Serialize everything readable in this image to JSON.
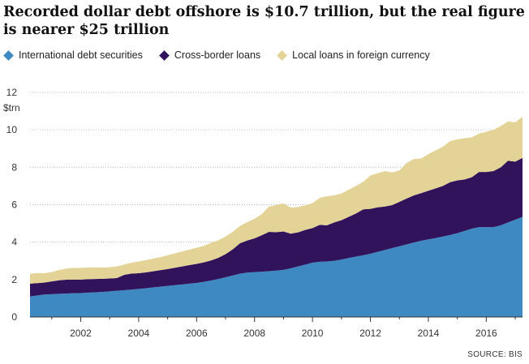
{
  "title": "Recorded dollar debt offshore is $10.7 trillion, but the real figure is nearer $25 trillion",
  "source": "SOURCE: BIS",
  "colors": {
    "international_debt_securities": "#3f89c3",
    "cross_border_loans": "#30135a",
    "local_loans_foreign_currency": "#e4d397",
    "grid": "#bdbdbd"
  },
  "chart_data": {
    "type": "area",
    "stacked": true,
    "title": "Recorded dollar debt offshore is $10.7 trillion, but the real figure is nearer $25 trillion",
    "ylabel": "$trn",
    "xlabel": "",
    "xlim": [
      2000.25,
      2017.25
    ],
    "ylim": [
      0,
      12
    ],
    "yticks": [
      "0",
      "2",
      "4",
      "6",
      "8",
      "10",
      "12"
    ],
    "xticks": [
      "2002",
      "2004",
      "2006",
      "2008",
      "2010",
      "2012",
      "2014",
      "2016"
    ],
    "grid": true,
    "legend_position": "top-left",
    "legend": [
      "International debt securities",
      "Cross-border loans",
      "Local loans in foreign currency"
    ],
    "x": [
      2000.25,
      2000.5,
      2000.75,
      2001.0,
      2001.25,
      2001.5,
      2001.75,
      2002.0,
      2002.25,
      2002.5,
      2002.75,
      2003.0,
      2003.25,
      2003.5,
      2003.75,
      2004.0,
      2004.25,
      2004.5,
      2004.75,
      2005.0,
      2005.25,
      2005.5,
      2005.75,
      2006.0,
      2006.25,
      2006.5,
      2006.75,
      2007.0,
      2007.25,
      2007.5,
      2007.75,
      2008.0,
      2008.25,
      2008.5,
      2008.75,
      2009.0,
      2009.25,
      2009.5,
      2009.75,
      2010.0,
      2010.25,
      2010.5,
      2010.75,
      2011.0,
      2011.25,
      2011.5,
      2011.75,
      2012.0,
      2012.25,
      2012.5,
      2012.75,
      2013.0,
      2013.25,
      2013.5,
      2013.75,
      2014.0,
      2014.25,
      2014.5,
      2014.75,
      2015.0,
      2015.25,
      2015.5,
      2015.75,
      2016.0,
      2016.25,
      2016.5,
      2016.75,
      2017.0,
      2017.25
    ],
    "series": [
      {
        "name": "International debt securities",
        "values": [
          1.1,
          1.15,
          1.2,
          1.22,
          1.24,
          1.25,
          1.27,
          1.28,
          1.3,
          1.32,
          1.34,
          1.37,
          1.4,
          1.43,
          1.46,
          1.5,
          1.54,
          1.58,
          1.62,
          1.66,
          1.7,
          1.74,
          1.78,
          1.82,
          1.88,
          1.95,
          2.03,
          2.12,
          2.22,
          2.32,
          2.37,
          2.4,
          2.42,
          2.45,
          2.48,
          2.52,
          2.6,
          2.7,
          2.8,
          2.9,
          2.95,
          2.97,
          3.0,
          3.07,
          3.15,
          3.23,
          3.3,
          3.38,
          3.48,
          3.58,
          3.68,
          3.78,
          3.88,
          3.98,
          4.07,
          4.15,
          4.22,
          4.3,
          4.38,
          4.48,
          4.6,
          4.72,
          4.8,
          4.8,
          4.8,
          4.9,
          5.05,
          5.2,
          5.35
        ]
      },
      {
        "name": "Cross-border loans",
        "values": [
          0.68,
          0.66,
          0.64,
          0.68,
          0.72,
          0.74,
          0.73,
          0.72,
          0.72,
          0.71,
          0.7,
          0.69,
          0.68,
          0.82,
          0.86,
          0.84,
          0.84,
          0.86,
          0.88,
          0.9,
          0.93,
          0.96,
          0.99,
          1.02,
          1.04,
          1.07,
          1.13,
          1.24,
          1.4,
          1.62,
          1.72,
          1.8,
          1.95,
          2.1,
          2.05,
          2.05,
          1.85,
          1.82,
          1.85,
          1.85,
          1.97,
          1.93,
          2.05,
          2.1,
          2.2,
          2.3,
          2.45,
          2.4,
          2.38,
          2.32,
          2.3,
          2.37,
          2.45,
          2.52,
          2.55,
          2.6,
          2.65,
          2.7,
          2.82,
          2.82,
          2.75,
          2.75,
          2.95,
          2.95,
          3.0,
          3.1,
          3.3,
          3.1,
          3.15
        ]
      },
      {
        "name": "Local loans in foreign currency",
        "values": [
          0.52,
          0.54,
          0.5,
          0.5,
          0.55,
          0.6,
          0.62,
          0.62,
          0.62,
          0.62,
          0.6,
          0.6,
          0.62,
          0.55,
          0.58,
          0.62,
          0.66,
          0.68,
          0.7,
          0.74,
          0.77,
          0.8,
          0.83,
          0.86,
          0.88,
          0.95,
          0.94,
          0.94,
          0.93,
          0.93,
          0.98,
          1.05,
          1.13,
          1.35,
          1.45,
          1.5,
          1.4,
          1.35,
          1.32,
          1.33,
          1.45,
          1.55,
          1.45,
          1.43,
          1.45,
          1.47,
          1.47,
          1.78,
          1.82,
          1.9,
          1.75,
          1.68,
          1.9,
          1.95,
          1.85,
          1.95,
          2.03,
          2.1,
          2.2,
          2.2,
          2.2,
          2.13,
          2.05,
          2.15,
          2.2,
          2.2,
          2.1,
          2.1,
          2.2
        ]
      }
    ]
  }
}
